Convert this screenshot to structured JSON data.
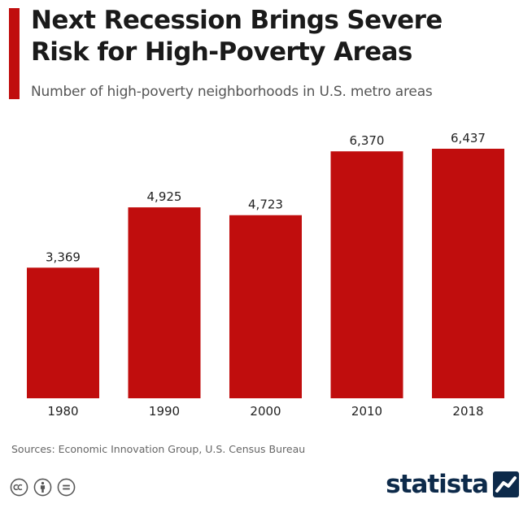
{
  "header": {
    "title": "Next Recession Brings Severe\nRisk for High-Poverty Areas",
    "subtitle": "Number of high-poverty neighborhoods in U.S. metro areas"
  },
  "footer": {
    "source": "Sources: Economic Innovation Group, U.S. Census Bureau",
    "brand": "statista",
    "icons": [
      "creative-commons-icon",
      "attribution-icon",
      "no-derivatives-icon"
    ]
  },
  "colors": {
    "bar": "#c00d0d",
    "accent": "#c00d0d",
    "brand": "#0d2a4a"
  },
  "chart_data": {
    "type": "bar",
    "categories": [
      "1980",
      "1990",
      "2000",
      "2010",
      "2018"
    ],
    "values": [
      3369,
      4925,
      4723,
      6370,
      6437
    ],
    "value_labels": [
      "3,369",
      "4,925",
      "4,723",
      "6,370",
      "6,437"
    ],
    "title": "Next Recession Brings Severe Risk for High-Poverty Areas",
    "subtitle": "Number of high-poverty neighborhoods in U.S. metro areas",
    "xlabel": "",
    "ylabel": "",
    "ylim": [
      0,
      6437
    ],
    "grid": false,
    "legend": "none"
  }
}
